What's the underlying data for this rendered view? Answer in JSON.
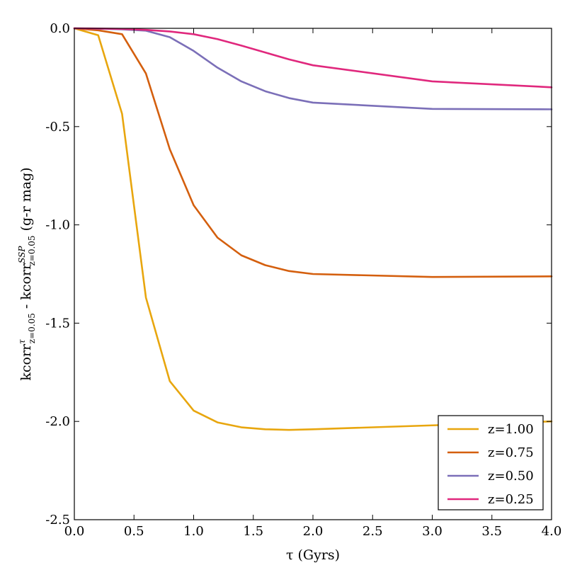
{
  "chart_data": {
    "type": "line",
    "title": "",
    "xlabel": "τ (Gyrs)",
    "ylabel": {
      "prefix": "kcorr",
      "sup1": "τ",
      "sub1": "z=0.05",
      "mid": " - kcorr",
      "sup2": "SSP",
      "sub2": "z=0.05",
      "suffix": " (g-r mag)"
    },
    "xlim": [
      0.0,
      4.0
    ],
    "ylim": [
      -2.5,
      0.0
    ],
    "xticks": [
      0.0,
      0.5,
      1.0,
      1.5,
      2.0,
      2.5,
      3.0,
      3.5,
      4.0
    ],
    "xtick_labels": [
      "0.0",
      "0.5",
      "1.0",
      "1.5",
      "2.0",
      "2.5",
      "3.0",
      "3.5",
      "4.0"
    ],
    "yticks": [
      0.0,
      -0.5,
      -1.0,
      -1.5,
      -2.0,
      -2.5
    ],
    "ytick_labels": [
      "0.0",
      "-0.5",
      "-1.0",
      "-1.5",
      "-2.0",
      "-2.5"
    ],
    "grid": false,
    "legend_position": "lower-right",
    "series": [
      {
        "name": "z=1.00",
        "color": "#e8a60e",
        "x": [
          0.0,
          0.2,
          0.4,
          0.6,
          0.8,
          1.0,
          1.2,
          1.4,
          1.6,
          1.8,
          2.0,
          3.0,
          4.0
        ],
        "y": [
          0.0,
          -0.035,
          -0.435,
          -1.37,
          -1.795,
          -1.945,
          -2.005,
          -2.03,
          -2.04,
          -2.043,
          -2.04,
          -2.02,
          -2.0
        ]
      },
      {
        "name": "z=0.75",
        "color": "#d45f0e",
        "x": [
          0.0,
          0.2,
          0.4,
          0.6,
          0.8,
          1.0,
          1.2,
          1.4,
          1.6,
          1.8,
          2.0,
          3.0,
          4.0
        ],
        "y": [
          0.0,
          -0.01,
          -0.03,
          -0.23,
          -0.615,
          -0.9,
          -1.065,
          -1.155,
          -1.205,
          -1.235,
          -1.25,
          -1.265,
          -1.262
        ]
      },
      {
        "name": "z=0.50",
        "color": "#7b6fb8",
        "x": [
          0.0,
          0.2,
          0.4,
          0.6,
          0.8,
          1.0,
          1.2,
          1.4,
          1.6,
          1.8,
          2.0,
          3.0,
          4.0
        ],
        "y": [
          0.0,
          -0.002,
          -0.005,
          -0.012,
          -0.045,
          -0.115,
          -0.2,
          -0.27,
          -0.32,
          -0.355,
          -0.378,
          -0.41,
          -0.412
        ]
      },
      {
        "name": "z=0.25",
        "color": "#e0287d",
        "x": [
          0.0,
          0.2,
          0.4,
          0.6,
          0.8,
          1.0,
          1.2,
          1.4,
          1.6,
          1.8,
          2.0,
          3.0,
          4.0
        ],
        "y": [
          0.0,
          -0.001,
          -0.003,
          -0.008,
          -0.016,
          -0.03,
          -0.055,
          -0.088,
          -0.123,
          -0.158,
          -0.188,
          -0.27,
          -0.3
        ]
      }
    ]
  }
}
